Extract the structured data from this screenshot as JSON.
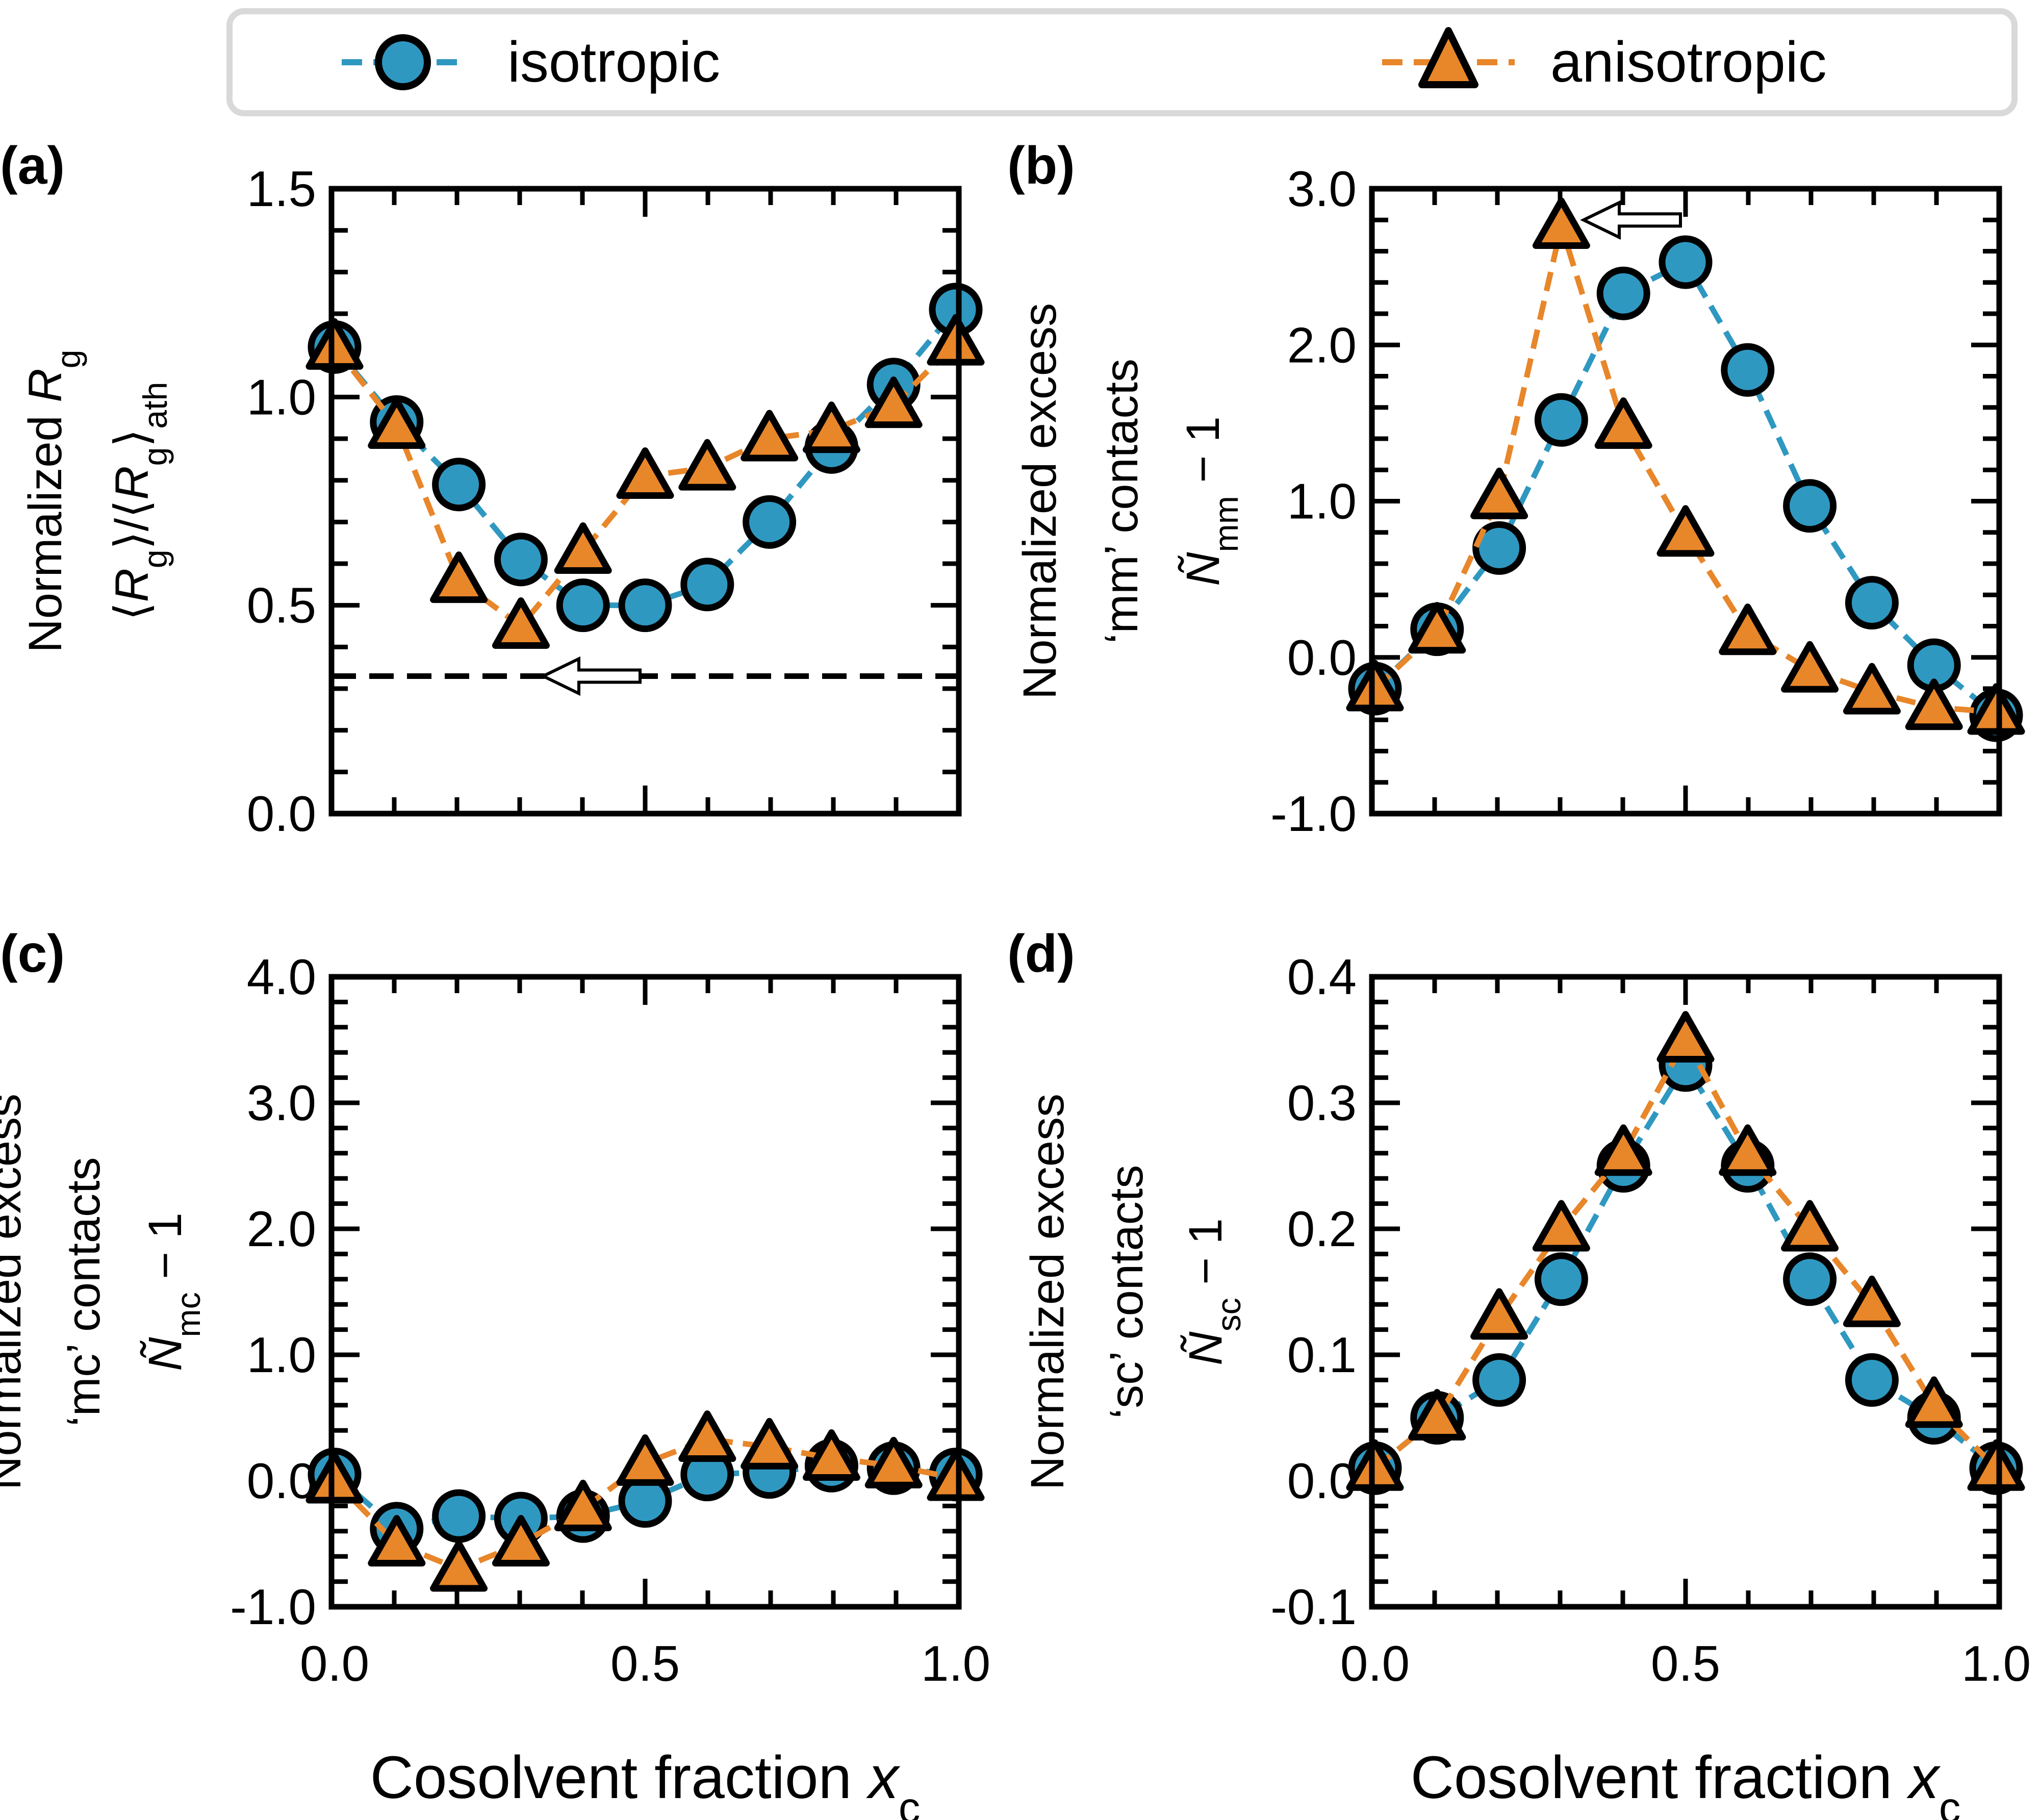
{
  "legend": {
    "items": [
      {
        "label": "isotropic",
        "color": "#2f98c1",
        "marker": "circle"
      },
      {
        "label": "anisotropic",
        "color": "#e8862a",
        "marker": "triangle"
      }
    ]
  },
  "chart_data": [
    {
      "type": "line",
      "panel": "(a)",
      "ylabel_lines": [
        "Normalized R_g",
        "⟨R_g⟩/⟨R_g⟩_ath"
      ],
      "xlabel": "",
      "ylim": [
        0,
        1.5
      ],
      "yticks": [
        0,
        0.5,
        1.0,
        1.5
      ],
      "ytick_labels": [
        "0.0",
        "0.5",
        "1.0",
        "1.5"
      ],
      "xlim": [
        0,
        1
      ],
      "xticks": [
        0,
        0.5,
        1.0
      ],
      "xtick_labels": [],
      "reference_line": 0.33,
      "arrow": {
        "x": 0.5,
        "y": 0.33,
        "direction": "left"
      },
      "x": [
        0.0,
        0.1,
        0.2,
        0.3,
        0.4,
        0.5,
        0.6,
        0.7,
        0.8,
        0.9,
        1.0
      ],
      "series": [
        {
          "name": "isotropic",
          "values": [
            1.12,
            0.94,
            0.79,
            0.61,
            0.5,
            0.5,
            0.55,
            0.7,
            0.88,
            1.03,
            1.21
          ]
        },
        {
          "name": "anisotropic",
          "values": [
            1.12,
            0.93,
            0.56,
            0.45,
            0.63,
            0.81,
            0.83,
            0.9,
            0.92,
            0.98,
            1.13
          ]
        }
      ]
    },
    {
      "type": "line",
      "panel": "(b)",
      "ylabel_lines": [
        "Normalized excess",
        "‘mm’ contacts",
        "Ñ_mm − 1"
      ],
      "xlabel": "",
      "ylim": [
        -1.0,
        3.0
      ],
      "yticks": [
        -1.0,
        0.0,
        1.0,
        2.0,
        3.0
      ],
      "ytick_labels": [
        "-1.0",
        "0.0",
        "1.0",
        "2.0",
        "3.0"
      ],
      "xlim": [
        0,
        1
      ],
      "xticks": [
        0,
        0.5,
        1.0
      ],
      "xtick_labels": [],
      "arrow": {
        "x": 0.5,
        "y": 2.8,
        "direction": "left"
      },
      "x": [
        0.0,
        0.1,
        0.2,
        0.3,
        0.4,
        0.5,
        0.6,
        0.7,
        0.8,
        0.9,
        1.0
      ],
      "series": [
        {
          "name": "isotropic",
          "values": [
            -0.2,
            0.18,
            0.7,
            1.52,
            2.33,
            2.53,
            1.84,
            0.97,
            0.35,
            -0.05,
            -0.37
          ]
        },
        {
          "name": "anisotropic",
          "values": [
            -0.2,
            0.17,
            1.03,
            2.76,
            1.48,
            0.79,
            0.16,
            -0.08,
            -0.22,
            -0.32,
            -0.35
          ]
        }
      ]
    },
    {
      "type": "line",
      "panel": "(c)",
      "ylabel_lines": [
        "Normalized excess",
        "‘mc’ contacts",
        "Ñ_mc − 1"
      ],
      "xlabel": "Cosolvent fraction x_c",
      "ylim": [
        -1.0,
        4.0
      ],
      "yticks": [
        -1.0,
        0.0,
        1.0,
        2.0,
        3.0,
        4.0
      ],
      "ytick_labels": [
        "-1.0",
        "0.0",
        "1.0",
        "2.0",
        "3.0",
        "4.0"
      ],
      "xlim": [
        0,
        1
      ],
      "xticks": [
        0,
        0.5,
        1.0
      ],
      "xtick_labels": [
        "0.0",
        "0.5",
        "1.0"
      ],
      "x": [
        0.0,
        0.1,
        0.2,
        0.3,
        0.4,
        0.5,
        0.6,
        0.7,
        0.8,
        0.9,
        1.0
      ],
      "series": [
        {
          "name": "isotropic",
          "values": [
            0.05,
            -0.38,
            -0.28,
            -0.3,
            -0.28,
            -0.16,
            0.05,
            0.07,
            0.12,
            0.1,
            0.05
          ]
        },
        {
          "name": "anisotropic",
          "values": [
            0.0,
            -0.5,
            -0.7,
            -0.5,
            -0.22,
            0.14,
            0.33,
            0.27,
            0.18,
            0.12,
            0.02
          ]
        }
      ]
    },
    {
      "type": "line",
      "panel": "(d)",
      "ylabel_lines": [
        "Normalized excess",
        "‘sc’ contacts",
        "Ñ_sc − 1"
      ],
      "xlabel": "Cosolvent fraction x_c",
      "ylim": [
        -0.1,
        0.4
      ],
      "yticks": [
        -0.1,
        0.0,
        0.1,
        0.2,
        0.3,
        0.4
      ],
      "ytick_labels": [
        "-0.1",
        "0.0",
        "0.1",
        "0.2",
        "0.3",
        "0.4"
      ],
      "xlim": [
        0,
        1
      ],
      "xticks": [
        0,
        0.5,
        1.0
      ],
      "xtick_labels": [
        "0.0",
        "0.5",
        "1.0"
      ],
      "x": [
        0.0,
        0.1,
        0.2,
        0.3,
        0.4,
        0.5,
        0.6,
        0.7,
        0.8,
        0.9,
        1.0
      ],
      "series": [
        {
          "name": "isotropic",
          "values": [
            0.01,
            0.05,
            0.08,
            0.16,
            0.25,
            0.33,
            0.25,
            0.16,
            0.08,
            0.05,
            0.01
          ]
        },
        {
          "name": "anisotropic",
          "values": [
            0.01,
            0.05,
            0.13,
            0.2,
            0.26,
            0.35,
            0.26,
            0.2,
            0.14,
            0.06,
            0.01
          ]
        }
      ]
    }
  ]
}
